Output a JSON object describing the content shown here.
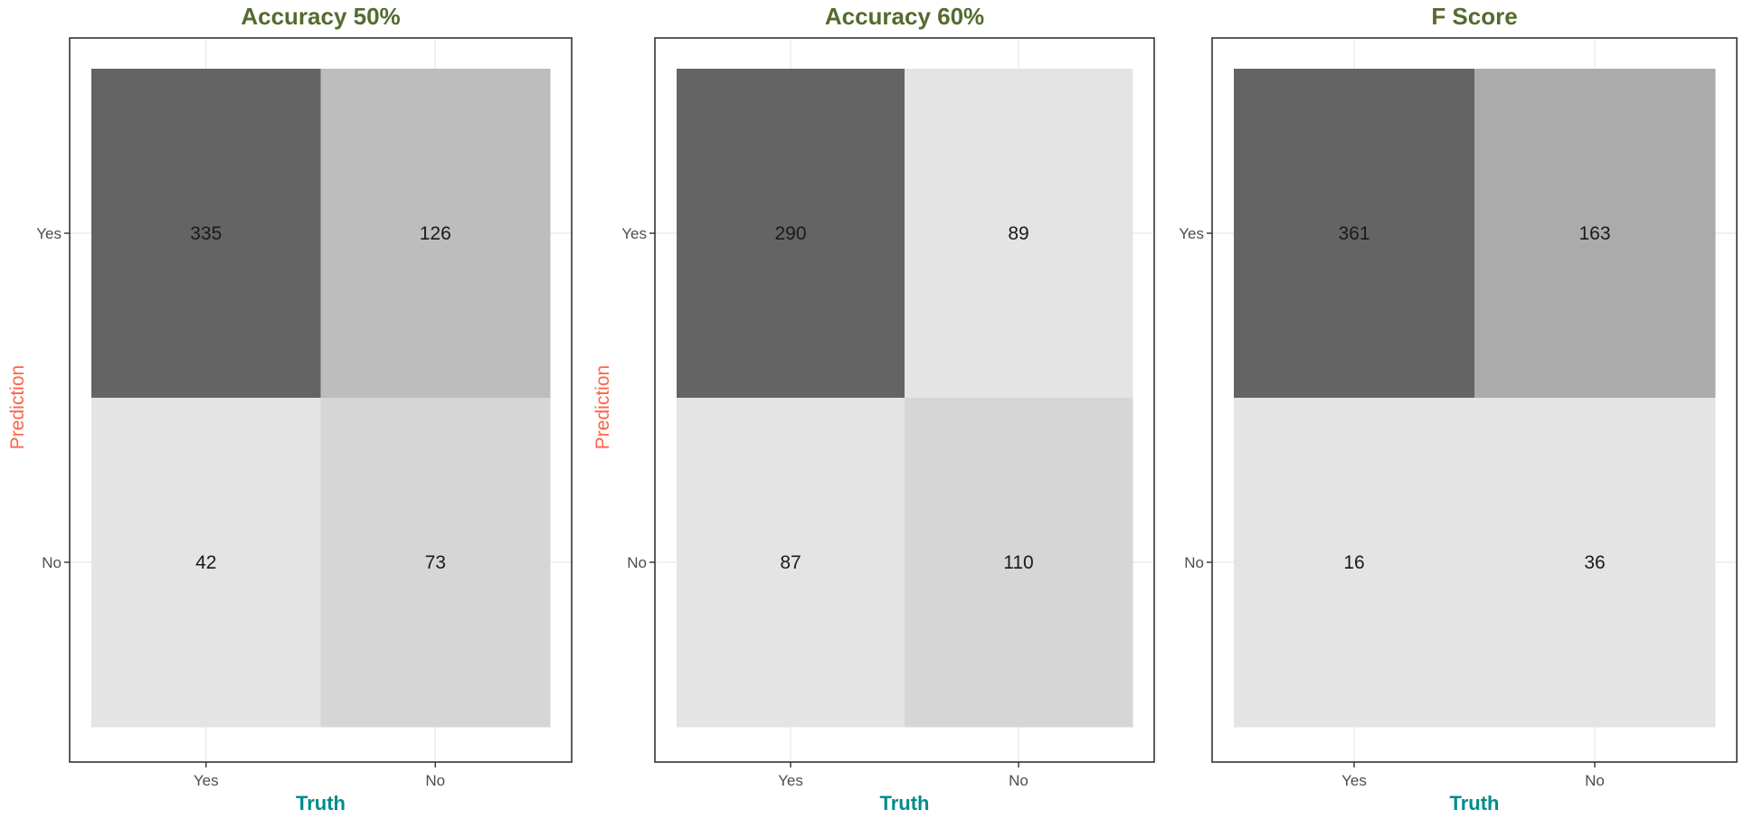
{
  "colors": {
    "title": "#556B2F",
    "x_axis_title": "#008B8B",
    "y_axis_title": "#FF6347",
    "tick_label": "#4d4d4d"
  },
  "chart_data": [
    {
      "type": "heatmap",
      "title": "Accuracy 50%",
      "xlabel": "Truth",
      "ylabel": "Prediction",
      "x_categories": [
        "Yes",
        "No"
      ],
      "y_categories": [
        "Yes",
        "No"
      ],
      "values": [
        [
          335,
          126
        ],
        [
          42,
          73
        ]
      ],
      "fill_colors": [
        [
          "#646464",
          "#bdbdbd"
        ],
        [
          "#e4e4e4",
          "#d6d6d6"
        ]
      ],
      "grid": true,
      "legend": "none"
    },
    {
      "type": "heatmap",
      "title": "Accuracy 60%",
      "xlabel": "Truth",
      "ylabel": "Prediction",
      "x_categories": [
        "Yes",
        "No"
      ],
      "y_categories": [
        "Yes",
        "No"
      ],
      "values": [
        [
          290,
          89
        ],
        [
          87,
          110
        ]
      ],
      "fill_colors": [
        [
          "#646464",
          "#e4e4e4"
        ],
        [
          "#e4e4e4",
          "#d6d6d6"
        ]
      ],
      "grid": true,
      "legend": "none"
    },
    {
      "type": "heatmap",
      "title": "F Score",
      "xlabel": "Truth",
      "ylabel": "",
      "x_categories": [
        "Yes",
        "No"
      ],
      "y_categories": [
        "Yes",
        "No"
      ],
      "values": [
        [
          361,
          163
        ],
        [
          16,
          36
        ]
      ],
      "fill_colors": [
        [
          "#646464",
          "#ababab"
        ],
        [
          "#e4e4e4",
          "#e4e4e4"
        ]
      ],
      "grid": true,
      "legend": "none"
    }
  ]
}
